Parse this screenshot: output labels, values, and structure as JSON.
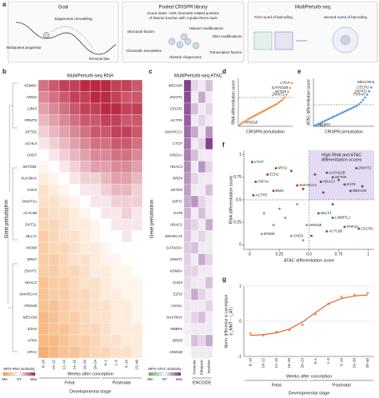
{
  "figure": {
    "panel_labels": [
      "a",
      "b",
      "c",
      "d",
      "e",
      "f",
      "g"
    ],
    "goal": {
      "title": "Goal",
      "progenitor": "Multipotent progenitor",
      "remodeling": "Epigenomic remodeling",
      "fate": "Terminal fate"
    },
    "library": {
      "title": "Pooled CRISPR library",
      "description": [
        "Knock down ~100 chromatin-related proteins",
        "of diverse function with 3 guide RNAs each"
      ],
      "factors": [
        "Structural factors",
        "Chromatin remodelers",
        "Histone modifications",
        "DNA modifications",
        "Histone chaperones",
        "Transcription factors"
      ]
    },
    "multiperturb": {
      "title": "MultiPerturb-seq",
      "steps": [
        "First round of barcoding",
        "Second round of barcoding"
      ]
    }
  },
  "chart_data": [
    {
      "type": "heatmap",
      "title": "MultiPerturb-seq RNA",
      "y_label": "Gene perturbation",
      "x_label": "Weeks after conception",
      "group_label": "Developmental stage",
      "rows": [
        "KDM6A",
        "ARID2",
        "CBX3",
        "PRMT5",
        "SETD2",
        "UCHL5",
        "CHD7",
        "SETDB1",
        "SUV39H1",
        "CHD3",
        "DNMT3A",
        "ACTL6B",
        "DOT1L",
        "MLLT1",
        "INO80",
        "BRD7",
        "ZNHIT1",
        "HDAC2",
        "SMARCA4",
        "ARID1B",
        "MECOM",
        "EZH2",
        "ATRX",
        "MTA1"
      ],
      "columns": [
        "8–10",
        "10–12",
        "12–14",
        "14–16",
        "16–20",
        "20–24",
        "0–1",
        "1–5",
        "5–15",
        "15–40"
      ],
      "groups": [
        {
          "label": "Fetal",
          "span": 6
        },
        {
          "label": "Postnatal",
          "span": 4
        }
      ],
      "values": [
        [
          0.6,
          0.7,
          0.8,
          0.8,
          0.9,
          0.9,
          0.9,
          0.8,
          0.8,
          0.7
        ],
        [
          0.5,
          0.6,
          0.7,
          0.8,
          0.8,
          0.9,
          0.9,
          0.8,
          0.7,
          0.7
        ],
        [
          0.4,
          0.5,
          0.6,
          0.7,
          0.8,
          0.8,
          0.9,
          0.9,
          0.8,
          0.8
        ],
        [
          0.3,
          0.4,
          0.5,
          0.6,
          0.7,
          0.7,
          0.8,
          0.8,
          0.7,
          0.7
        ],
        [
          0.2,
          0.3,
          0.4,
          0.5,
          0.6,
          0.7,
          0.7,
          0.8,
          0.8,
          0.7
        ],
        [
          0.1,
          0.2,
          0.3,
          0.4,
          0.5,
          0.6,
          0.6,
          0.7,
          0.7,
          0.6
        ],
        [
          0,
          0.1,
          0.2,
          0.3,
          0.4,
          0.5,
          0.5,
          0.6,
          0.6,
          0.5
        ],
        [
          -0.1,
          0,
          0.1,
          0.2,
          0.3,
          0.4,
          0.4,
          0.5,
          0.5,
          0.4
        ],
        [
          -0.2,
          -0.1,
          0,
          0.1,
          0.2,
          0.2,
          0.3,
          0.4,
          0.4,
          0.3
        ],
        [
          -0.3,
          -0.2,
          -0.1,
          0,
          0.1,
          0.1,
          0.2,
          0.3,
          0.3,
          0.2
        ],
        [
          -0.3,
          -0.3,
          -0.2,
          -0.1,
          0,
          0.1,
          0.1,
          0.2,
          0.2,
          0.2
        ],
        [
          -0.4,
          -0.3,
          -0.3,
          -0.2,
          -0.1,
          0,
          0.1,
          0.1,
          0.2,
          0.1
        ],
        [
          -0.4,
          -0.4,
          -0.3,
          -0.2,
          -0.2,
          -0.1,
          0,
          0.1,
          0.1,
          0.1
        ],
        [
          -0.5,
          -0.4,
          -0.3,
          -0.3,
          -0.2,
          -0.1,
          0,
          0,
          0.1,
          0
        ],
        [
          -0.5,
          -0.4,
          -0.4,
          -0.3,
          -0.2,
          -0.2,
          -0.1,
          0,
          0,
          0
        ],
        [
          -0.5,
          -0.5,
          -0.4,
          -0.3,
          -0.3,
          -0.2,
          -0.1,
          -0.1,
          0,
          0
        ],
        [
          -0.5,
          -0.5,
          -0.4,
          -0.4,
          -0.3,
          -0.2,
          -0.2,
          -0.1,
          -0.1,
          0
        ],
        [
          -0.6,
          -0.5,
          -0.5,
          -0.4,
          -0.3,
          -0.3,
          -0.2,
          -0.1,
          -0.1,
          -0.1
        ],
        [
          -0.6,
          -0.5,
          -0.5,
          -0.4,
          -0.4,
          -0.3,
          -0.2,
          -0.2,
          -0.1,
          -0.1
        ],
        [
          -0.6,
          -0.6,
          -0.5,
          -0.4,
          -0.4,
          -0.3,
          -0.3,
          -0.2,
          -0.2,
          -0.1
        ],
        [
          -0.7,
          -0.6,
          -0.5,
          -0.5,
          -0.4,
          -0.3,
          -0.3,
          -0.2,
          -0.2,
          -0.1
        ],
        [
          -0.7,
          -0.6,
          -0.6,
          -0.5,
          -0.4,
          -0.4,
          -0.3,
          -0.2,
          -0.2,
          -0.2
        ],
        [
          -0.7,
          -0.7,
          -0.6,
          -0.5,
          -0.5,
          -0.4,
          -0.3,
          -0.3,
          -0.2,
          -0.2
        ],
        [
          -0.8,
          -0.7,
          -0.6,
          -0.6,
          -0.5,
          -0.4,
          -0.4,
          -0.3,
          -0.3,
          -0.2
        ]
      ],
      "vlim": [
        -1,
        1
      ],
      "colors": {
        "min": "#f39b4f",
        "nt": "#ffffff",
        "max": "#b3122e"
      },
      "legend": {
        "title": "MPS-RNA similarity",
        "labels": [
          "Min",
          "NT",
          "Max"
        ]
      }
    },
    {
      "type": "heatmap",
      "title": "MultiPerturb-seq ATAC",
      "y_label": "Gene perturbation",
      "rows": [
        "MECOM",
        "ZNHIT1",
        "CECR2",
        "ACTR5",
        "SMARCC1",
        "CTCF",
        "ARID1A",
        "HDAC3",
        "BRD4",
        "SETD5",
        "SIRT1",
        "KAT8",
        "HDAC1",
        "SMARCA5",
        "GATAD2A",
        "DNMT1",
        "KDM6A",
        "CHD4",
        "EZH2",
        "ASH1L",
        "SUV39H1",
        "RBBP4",
        "BRD9",
        "ARID1B"
      ],
      "columns": [
        null,
        "Promoter",
        "Enhancer",
        "Insulator"
      ],
      "groups": [
        {
          "label": null,
          "span": 1
        },
        {
          "label": "ENCODE",
          "span": 3
        }
      ],
      "values": [
        [
          0.9,
          0.2,
          0.1,
          0.3
        ],
        [
          0.85,
          0.1,
          0.4,
          0.1
        ],
        [
          0.8,
          0.3,
          0.1,
          0.2
        ],
        [
          0.75,
          0.1,
          0.2,
          0.1
        ],
        [
          0.7,
          0.4,
          0.1,
          0.5
        ],
        [
          0.65,
          0.1,
          0.2,
          0.9
        ],
        [
          0.6,
          0.3,
          0.1,
          0.1
        ],
        [
          0.55,
          0.1,
          0.5,
          0.2
        ],
        [
          0.5,
          0.2,
          0.1,
          0.1
        ],
        [
          0.45,
          0.1,
          0.1,
          0.3
        ],
        [
          0.4,
          0.5,
          0.2,
          0.1
        ],
        [
          0.35,
          0.1,
          0.3,
          0.1
        ],
        [
          0.3,
          0.2,
          0.1,
          0.4
        ],
        [
          0.28,
          0.1,
          0.2,
          0.1
        ],
        [
          0.25,
          0.3,
          0.1,
          0.1
        ],
        [
          0.22,
          0.1,
          0.4,
          0.2
        ],
        [
          0.2,
          0.2,
          0.1,
          0.1
        ],
        [
          0.18,
          0.1,
          0.1,
          0.3
        ],
        [
          0.15,
          0.4,
          0.2,
          0.1
        ],
        [
          0.12,
          0.1,
          0.1,
          0.2
        ],
        [
          0.1,
          0.2,
          0.3,
          0.1
        ],
        [
          0.08,
          0.1,
          0.1,
          0.1
        ],
        [
          0.05,
          0.3,
          0.2,
          0.4
        ],
        [
          0.02,
          0.1,
          0.1,
          0.1
        ]
      ],
      "vlim": [
        -1,
        1
      ],
      "colors": {
        "min": "#5aae61",
        "nt": "#ffffff",
        "max": "#762a83"
      },
      "legend": {
        "title": "MPS-ATAC similarity",
        "labels": [
          "Min",
          "NT",
          "Max"
        ]
      }
    },
    {
      "type": "rank",
      "x_label": "CRISPRi perturbation",
      "y_label": "RNA differentiation score",
      "categories": [
        null,
        null,
        "ARID1B",
        null,
        null,
        null,
        null,
        null,
        null,
        null,
        null,
        null,
        null,
        null,
        null,
        null,
        null,
        null,
        null,
        null,
        null,
        null,
        null,
        null,
        null,
        null,
        "ZNHIT1",
        "SETD5",
        "GATAD2B",
        "CTCF"
      ],
      "values": [
        0.02,
        0.05,
        0.08,
        0.1,
        0.12,
        0.15,
        0.17,
        0.19,
        0.21,
        0.23,
        0.25,
        0.27,
        0.29,
        0.31,
        0.33,
        0.35,
        0.37,
        0.39,
        0.41,
        0.43,
        0.45,
        0.47,
        0.5,
        0.53,
        0.56,
        0.6,
        0.66,
        0.72,
        0.8,
        0.9
      ],
      "ylim": [
        0,
        1
      ],
      "threshold": 0.6,
      "color": "#f08c3a"
    },
    {
      "type": "rank",
      "x_label": "CRISPRi perturbation",
      "y_label": "ATAC differentiation score",
      "categories": [
        "CTCF",
        "ACTR5",
        null,
        null,
        null,
        null,
        null,
        null,
        null,
        null,
        null,
        null,
        null,
        null,
        null,
        null,
        null,
        null,
        null,
        null,
        null,
        null,
        null,
        null,
        null,
        null,
        "TRRAP",
        "ZNHIT1",
        "CECR2",
        "MECOM"
      ],
      "values": [
        0.01,
        0.03,
        0.05,
        0.07,
        0.09,
        0.11,
        0.13,
        0.15,
        0.17,
        0.19,
        0.21,
        0.23,
        0.25,
        0.27,
        0.29,
        0.31,
        0.33,
        0.35,
        0.37,
        0.39,
        0.41,
        0.43,
        0.46,
        0.5,
        0.55,
        0.6,
        0.66,
        0.73,
        0.81,
        0.92
      ],
      "ylim": [
        0,
        1
      ],
      "threshold": 0.45,
      "color": "#4a8fd4"
    },
    {
      "type": "scatter",
      "x_label": "ATAC differentiation score",
      "y_label": "RNA differentiation score",
      "x": [
        0.02,
        0.05,
        0.22,
        0.15,
        0.2,
        0.03,
        0.35,
        0.4,
        0.45,
        0.6,
        0.65,
        0.7,
        0.75,
        0.8,
        0.85,
        0.9,
        0.55,
        0.95,
        0.62,
        0.58,
        0.7,
        0.8,
        0.92,
        0.65,
        0.48,
        0.35,
        0.1,
        0.3,
        0.25,
        0.4,
        0.12,
        0.52,
        0.45,
        0.2,
        0.7
      ],
      "y": [
        0.92,
        0.7,
        0.85,
        0.78,
        0.6,
        0.55,
        0.82,
        0.66,
        0.62,
        0.7,
        0.8,
        0.75,
        0.72,
        0.67,
        0.6,
        0.85,
        0.78,
        0.65,
        0.58,
        0.35,
        0.3,
        0.2,
        0.18,
        0.15,
        0.22,
        0.1,
        0.12,
        0.3,
        0.4,
        0.45,
        0.35,
        0.1,
        0.05,
        0.22,
        0.45
      ],
      "labels": [
        "CTCF",
        "H3F3A",
        "MTA1",
        "EZH2",
        "BMI1",
        "ACTR5",
        null,
        "SMARCC1",
        null,
        "HDAC2",
        "GATAD2B",
        "SETD5",
        null,
        "KAT8",
        "MECOM",
        "ZNHIT1",
        null,
        null,
        null,
        "MLLT1",
        "L3MBTL1",
        "PHF10",
        "CECR2",
        "ACTL6B",
        "ARID1B",
        "CHD3",
        "EP300",
        null,
        null,
        null,
        null,
        null,
        null,
        null,
        null
      ],
      "xlim": [
        -0.05,
        1.05
      ],
      "ylim": [
        -0.05,
        1.05
      ],
      "xticks": [
        0,
        0.25,
        0.5,
        0.75,
        1
      ],
      "yticks": [
        0,
        0.25,
        0.5,
        0.75,
        1
      ],
      "thresholds": [
        0.5,
        0.5
      ],
      "highlight": [
        "High RNA and ATAC",
        "differentiation scores"
      ],
      "highlight_color": "#d9cbec",
      "colors": {
        "both": "#6b4c9a",
        "rna": "#c0392b",
        "atac": "#2e6fb5",
        "none": "#9a9a9a"
      }
    },
    {
      "type": "line",
      "x_label": "Weeks after conception",
      "group_label": "Developmental stage",
      "y_label": [
        "Norm. difference in correlation",
        "(r_MMT − r_AT)"
      ],
      "categories": [
        "8–10",
        "10–12",
        "12–16",
        "16–20",
        "20–24",
        "0–1",
        "1–5",
        "5–10",
        "10–20",
        "20–40"
      ],
      "groups": [
        {
          "label": "Fetal",
          "span": 5
        },
        {
          "label": "Postnatal",
          "span": 5
        }
      ],
      "ylim": [
        -1,
        1
      ],
      "yticks": [
        -1,
        0,
        1
      ],
      "series": [
        {
          "style": "points",
          "color": "#f08c3a",
          "values": [
            -0.35,
            -0.4,
            -0.3,
            -0.25,
            -0.1,
            0.2,
            0.5,
            0.7,
            0.75,
            0.8
          ]
        },
        {
          "style": "line",
          "color": "#e0622a",
          "values": [
            -0.4,
            -0.38,
            -0.33,
            -0.22,
            -0.02,
            0.25,
            0.5,
            0.65,
            0.72,
            0.75
          ]
        }
      ]
    }
  ]
}
